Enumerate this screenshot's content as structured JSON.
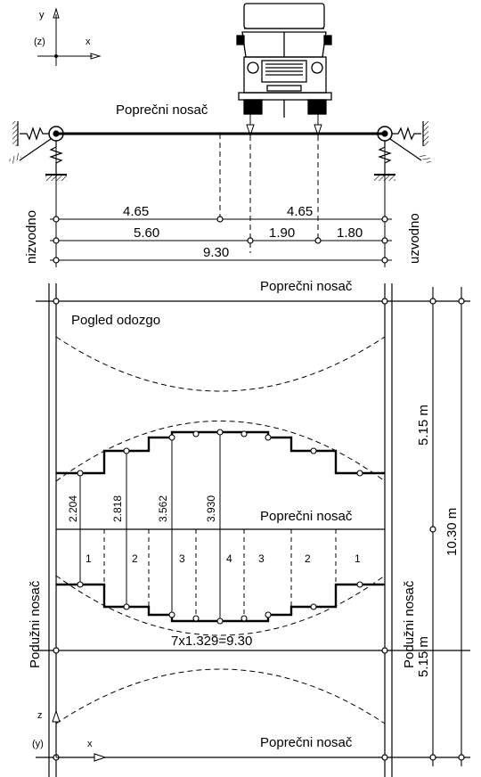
{
  "axes_top": {
    "y": "y",
    "z": "(z)",
    "x": "x"
  },
  "axes_bottom": {
    "z": "z",
    "y": "(y)",
    "x": "x"
  },
  "cross_section": {
    "beam_label": "Poprečni nosač",
    "left_side": "nizvodno",
    "right_side": "uzvodno",
    "dims_row1": [
      "4.65",
      "4.65"
    ],
    "dims_row2": [
      "5.60",
      "1.90",
      "1.80"
    ],
    "dims_row3": [
      "9.30"
    ]
  },
  "plan": {
    "top_beam": "Poprečni nosač",
    "view_label": "Pogled odozgo",
    "mid_beam": "Poprečni nosač",
    "bottom_beam": "Poprečni nosač",
    "left_girder": "Podužni nosač",
    "right_girder": "Podužni nosač",
    "strip_values": [
      "2.204",
      "2.818",
      "3.562",
      "3.930"
    ],
    "strip_numbers": [
      "1",
      "2",
      "3",
      "4",
      "3",
      "2",
      "1"
    ],
    "width_formula": "7x1.329=9.30",
    "half_span_top": "5.15 m",
    "half_span_bottom": "5.15 m",
    "span_total": "10.30 m"
  }
}
